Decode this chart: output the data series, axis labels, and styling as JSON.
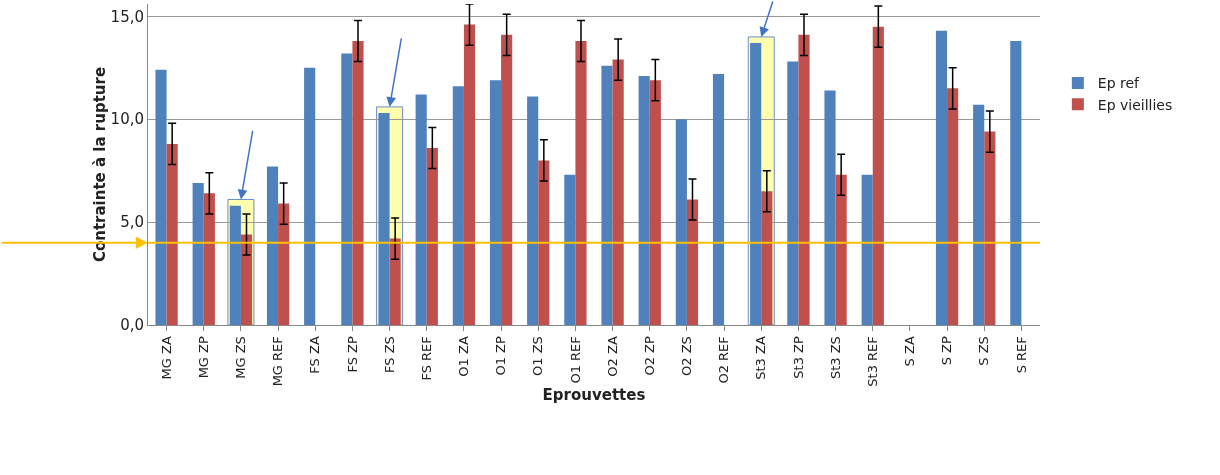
{
  "chart_data": {
    "type": "bar",
    "xlabel": "Eprouvettes",
    "ylabel": "Contrainte à la rupture",
    "categories": [
      "MG ZA",
      "MG ZP",
      "MG ZS",
      "MG REF",
      "FS ZA",
      "FS ZP",
      "FS ZS",
      "FS REF",
      "O1 ZA",
      "O1 ZP",
      "O1 ZS",
      "O1 REF",
      "O2 ZA",
      "O2 ZP",
      "O2 ZS",
      "O2 REF",
      "St3 ZA",
      "St3 ZP",
      "St3 ZS",
      "St3 REF",
      "S ZA",
      "S ZP",
      "S ZS",
      "S REF"
    ],
    "series": [
      {
        "name": "Ep ref",
        "color": "#4f81bd",
        "values": [
          12.4,
          6.9,
          5.8,
          7.7,
          12.5,
          13.2,
          10.3,
          11.2,
          11.6,
          11.9,
          11.1,
          7.3,
          12.6,
          12.1,
          10.0,
          12.2,
          13.7,
          12.8,
          11.4,
          7.3,
          null,
          14.3,
          10.7,
          13.8
        ]
      },
      {
        "name": "Ep vieillies",
        "color": "#c0504d",
        "values": [
          8.8,
          6.4,
          4.4,
          5.9,
          null,
          13.8,
          4.2,
          8.6,
          14.6,
          14.1,
          8.0,
          13.8,
          12.9,
          11.9,
          6.1,
          null,
          6.5,
          14.1,
          7.3,
          14.5,
          null,
          11.5,
          9.4,
          null
        ],
        "errors": [
          1.0,
          1.0,
          1.0,
          1.0,
          null,
          1.0,
          1.0,
          1.0,
          1.0,
          1.0,
          1.0,
          1.0,
          1.0,
          1.0,
          1.0,
          null,
          1.0,
          1.0,
          1.0,
          1.0,
          null,
          1.0,
          1.0,
          null
        ]
      }
    ],
    "ylim": [
      0,
      15.6
    ],
    "yticks": [
      {
        "value": 0,
        "label": "0,0"
      },
      {
        "value": 5,
        "label": "5,0"
      },
      {
        "value": 10,
        "label": "10,0"
      },
      {
        "value": 15,
        "label": "15,0"
      }
    ],
    "grid": "y",
    "legend": "right",
    "ref_lines": [
      {
        "axis": "y",
        "value": 4.0,
        "color": "#ffc000"
      }
    ],
    "bands": [
      {
        "axis": "x",
        "from": "MG ZS",
        "to": "MG ZS",
        "color": "#ffff99"
      },
      {
        "axis": "x",
        "from": "FS ZS",
        "to": "FS ZS",
        "color": "#ffff99"
      },
      {
        "axis": "x",
        "from": "St3 ZA",
        "to": "St3 ZA",
        "color": "#ffff99"
      }
    ]
  }
}
